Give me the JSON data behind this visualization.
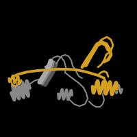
{
  "background_color": "#000000",
  "gold_color": "#D4A020",
  "gray_color": "#888888",
  "dark_gray": "#555555",
  "light_gray": "#aaaaaa",
  "figsize": [
    2.0,
    2.0
  ],
  "dpi": 100
}
